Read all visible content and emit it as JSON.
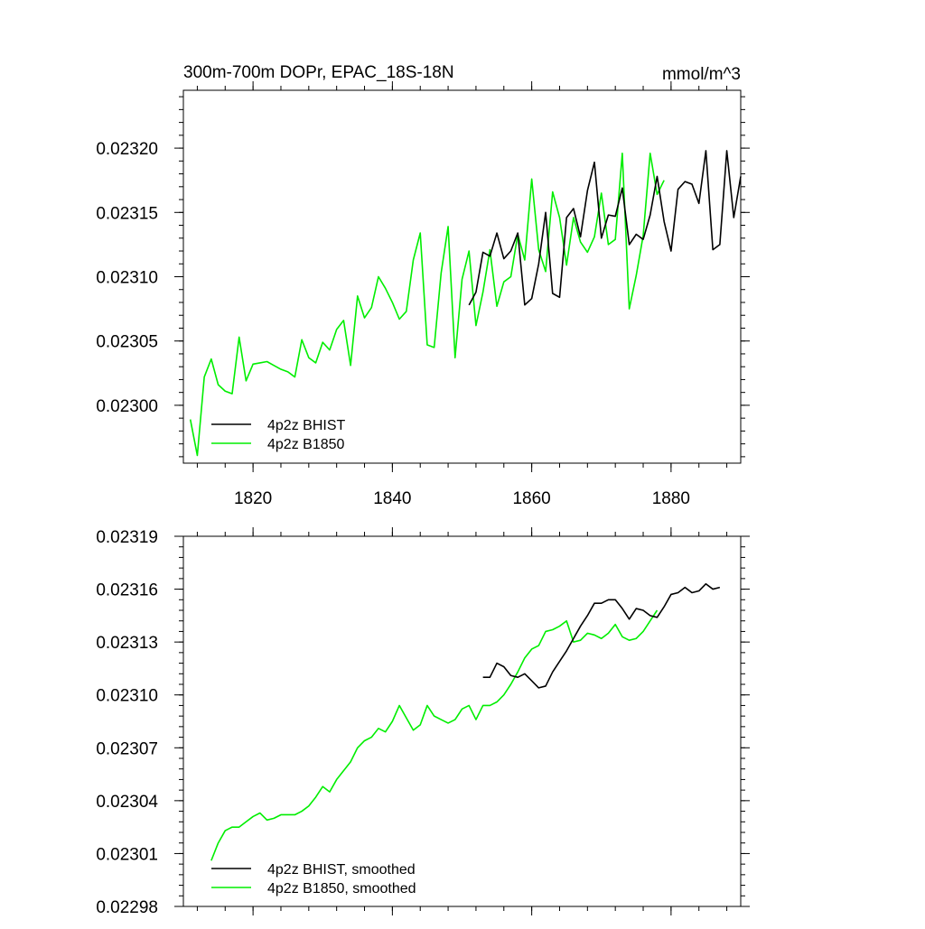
{
  "chart_data": [
    {
      "type": "line",
      "title": "300m-700m DOPr, EPAC_18S-18N",
      "units": "mmol/m^3",
      "xlim": [
        1810,
        1890
      ],
      "ylim": [
        0.022955,
        0.023245
      ],
      "xticks": [
        1820,
        1840,
        1860,
        1880
      ],
      "xtick_labels": [
        "1820",
        "1840",
        "1860",
        "1880"
      ],
      "yticks": [
        0.023,
        0.02305,
        0.0231,
        0.02315,
        0.0232
      ],
      "ytick_labels": [
        "0.02300",
        "0.02305",
        "0.02310",
        "0.02315",
        "0.02320"
      ],
      "legend_position": "bottom-left",
      "series": [
        {
          "name": "4p2z BHIST",
          "color": "#000000",
          "x_start": 1851,
          "values": [
            0.023078,
            0.023088,
            0.023119,
            0.023116,
            0.023134,
            0.023114,
            0.02312,
            0.023134,
            0.023078,
            0.023083,
            0.02311,
            0.02315,
            0.023087,
            0.023084,
            0.023146,
            0.023153,
            0.023131,
            0.023167,
            0.023189,
            0.02313,
            0.023148,
            0.023147,
            0.023169,
            0.023125,
            0.023133,
            0.023129,
            0.023148,
            0.023178,
            0.023143,
            0.02312,
            0.023168,
            0.023174,
            0.023172,
            0.023157,
            0.023198,
            0.023121,
            0.023125,
            0.023198,
            0.023146,
            0.023178
          ]
        },
        {
          "name": "4p2z B1850",
          "color": "#00ee00",
          "x_start": 1811,
          "values": [
            0.022989,
            0.022961,
            0.023022,
            0.023036,
            0.023016,
            0.023011,
            0.023009,
            0.023053,
            0.023019,
            0.023032,
            0.023033,
            0.023034,
            0.023031,
            0.023028,
            0.023026,
            0.023022,
            0.023051,
            0.023037,
            0.023033,
            0.023049,
            0.023043,
            0.023059,
            0.023066,
            0.023031,
            0.023085,
            0.023068,
            0.023076,
            0.0231,
            0.023091,
            0.02308,
            0.023067,
            0.023073,
            0.023113,
            0.023134,
            0.023047,
            0.023045,
            0.023103,
            0.023139,
            0.023037,
            0.023098,
            0.02312,
            0.023062,
            0.023088,
            0.023121,
            0.023077,
            0.023096,
            0.0231,
            0.023133,
            0.023113,
            0.023176,
            0.023121,
            0.023104,
            0.023166,
            0.023146,
            0.023109,
            0.023146,
            0.023127,
            0.023119,
            0.023131,
            0.023165,
            0.023125,
            0.023129,
            0.023196,
            0.023075,
            0.023101,
            0.023132,
            0.023196,
            0.023164,
            0.023175
          ]
        }
      ]
    },
    {
      "type": "line",
      "title": "",
      "units": "",
      "xlim": [
        1810,
        1890
      ],
      "ylim": [
        0.02298,
        0.02319
      ],
      "xticks": [
        1820,
        1840,
        1860,
        1880
      ],
      "xtick_labels": [
        "",
        "",
        "",
        ""
      ],
      "yticks": [
        0.02298,
        0.02301,
        0.02304,
        0.02307,
        0.0231,
        0.02313,
        0.02316,
        0.02319
      ],
      "ytick_labels": [
        "0.02298",
        "0.02301",
        "0.02304",
        "0.02307",
        "0.02310",
        "0.02313",
        "0.02316",
        "0.02319"
      ],
      "legend_position": "bottom-left",
      "series": [
        {
          "name": "4p2z BHIST, smoothed",
          "color": "#000000",
          "x_start": 1853,
          "values": [
            0.02311,
            0.02311,
            0.023118,
            0.023116,
            0.023111,
            0.02311,
            0.023112,
            0.023108,
            0.023104,
            0.023105,
            0.023113,
            0.023119,
            0.023125,
            0.023132,
            0.023139,
            0.023145,
            0.023152,
            0.023152,
            0.023154,
            0.023154,
            0.023149,
            0.023143,
            0.023149,
            0.023148,
            0.023145,
            0.023144,
            0.02315,
            0.023157,
            0.023158,
            0.023161,
            0.023158,
            0.023159,
            0.023163,
            0.02316,
            0.023161
          ]
        },
        {
          "name": "4p2z B1850, smoothed",
          "color": "#00ee00",
          "x_start": 1814,
          "values": [
            0.023006,
            0.023016,
            0.023023,
            0.023025,
            0.023025,
            0.023028,
            0.023031,
            0.023033,
            0.023029,
            0.02303,
            0.023032,
            0.023032,
            0.023032,
            0.023034,
            0.023037,
            0.023042,
            0.023048,
            0.023045,
            0.023052,
            0.023057,
            0.023062,
            0.02307,
            0.023074,
            0.023076,
            0.023081,
            0.023079,
            0.023085,
            0.023094,
            0.023087,
            0.02308,
            0.023083,
            0.023094,
            0.023088,
            0.023086,
            0.023084,
            0.023086,
            0.023092,
            0.023094,
            0.023086,
            0.023094,
            0.023094,
            0.023096,
            0.0231,
            0.023106,
            0.023113,
            0.023121,
            0.023126,
            0.023128,
            0.023136,
            0.023137,
            0.023139,
            0.023142,
            0.02313,
            0.023131,
            0.023135,
            0.023134,
            0.023132,
            0.023135,
            0.02314,
            0.023133,
            0.023131,
            0.023132,
            0.023136,
            0.023142,
            0.023148
          ]
        }
      ]
    }
  ]
}
